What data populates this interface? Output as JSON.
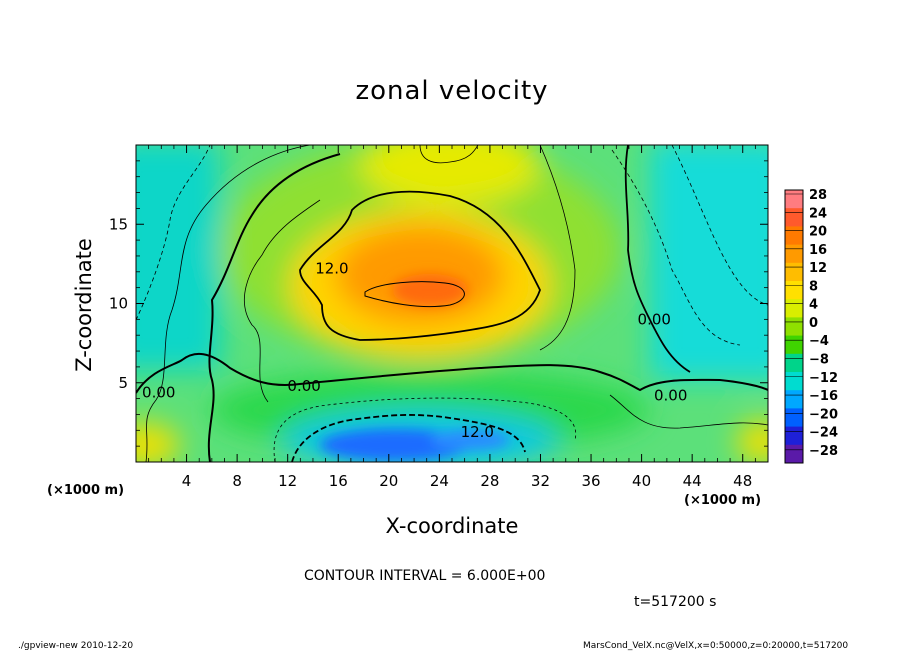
{
  "chart_data": {
    "type": "heatmap",
    "title": "zonal velocity",
    "xlabel": "X-coordinate",
    "ylabel": "Z-coordinate",
    "x_unit_label": "(×1000 m)",
    "xlim": [
      0,
      50
    ],
    "ylim": [
      0,
      20
    ],
    "x_ticks": [
      4,
      8,
      12,
      16,
      20,
      24,
      28,
      32,
      36,
      40,
      44,
      48
    ],
    "y_ticks": [
      5,
      10,
      15
    ],
    "colorbar": {
      "levels": [
        -28,
        -24,
        -20,
        -16,
        -12,
        -8,
        -4,
        0,
        4,
        8,
        12,
        16,
        20,
        24,
        28
      ],
      "labels": [
        "28",
        "24",
        "20",
        "16",
        "12",
        "8",
        "4",
        "0",
        "−4",
        "−8",
        "−12",
        "−16",
        "−20",
        "−24",
        "−28"
      ],
      "colors": [
        "#ff7c80",
        "#ff5a2c",
        "#ff7a00",
        "#ff9a00",
        "#ffbd00",
        "#ffe000",
        "#d9ee00",
        "#8fe000",
        "#3fd400",
        "#00d48a",
        "#00dcd0",
        "#00a8ff",
        "#0060ff",
        "#1e20d8",
        "#5a1aa8"
      ]
    },
    "contour_labels": [
      {
        "text": "12.0",
        "x": 15.5,
        "z": 12.2
      },
      {
        "text": "0.00",
        "x": 1.8,
        "z": 4.4
      },
      {
        "text": "0.00",
        "x": 13.3,
        "z": 4.8
      },
      {
        "text": "0.00",
        "x": 41.0,
        "z": 9.0
      },
      {
        "text": "0.00",
        "x": 42.3,
        "z": 4.2
      },
      {
        "text": "12.0",
        "x": 27.0,
        "z": 1.9
      }
    ],
    "contour_interval": 6.0
  },
  "contour_text": "CONTOUR INTERVAL = 6.000E+00",
  "time_text": "t=517200 s",
  "footer_left": "./gpview-new  2010-12-20",
  "footer_right": "MarsCond_VelX.nc@VelX,x=0:50000,z=0:20000,t=517200"
}
